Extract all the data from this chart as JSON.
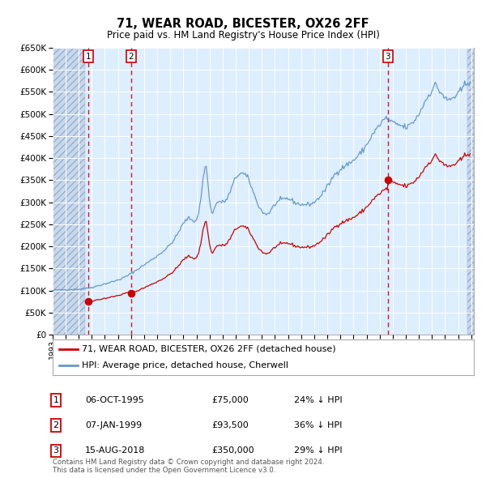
{
  "title": "71, WEAR ROAD, BICESTER, OX26 2FF",
  "subtitle": "Price paid vs. HM Land Registry's House Price Index (HPI)",
  "ylim": [
    0,
    650000
  ],
  "yticks": [
    0,
    50000,
    100000,
    150000,
    200000,
    250000,
    300000,
    350000,
    400000,
    450000,
    500000,
    550000,
    600000,
    650000
  ],
  "xlim_start": 1993.0,
  "xlim_end": 2025.2,
  "hatch_left_end": 1995.5,
  "hatch_right_start": 2024.7,
  "background_color": "#ffffff",
  "plot_bg_color": "#ddeeff",
  "hatch_color": "#c8d8ec",
  "grid_color": "#ffffff",
  "red_line_color": "#cc0000",
  "blue_line_color": "#6699cc",
  "sales": [
    {
      "num": 1,
      "date_label": "06-OCT-1995",
      "date_x": 1995.76,
      "price": 75000,
      "pct": "24%",
      "dir": "↓"
    },
    {
      "num": 2,
      "date_label": "07-JAN-1999",
      "date_x": 1999.02,
      "price": 93500,
      "pct": "36%",
      "dir": "↓"
    },
    {
      "num": 3,
      "date_label": "15-AUG-2018",
      "date_x": 2018.62,
      "price": 350000,
      "pct": "29%",
      "dir": "↓"
    }
  ],
  "legend_red_label": "71, WEAR ROAD, BICESTER, OX26 2FF (detached house)",
  "legend_blue_label": "HPI: Average price, detached house, Cherwell",
  "footnote": "Contains HM Land Registry data © Crown copyright and database right 2024.\nThis data is licensed under the Open Government Licence v3.0."
}
